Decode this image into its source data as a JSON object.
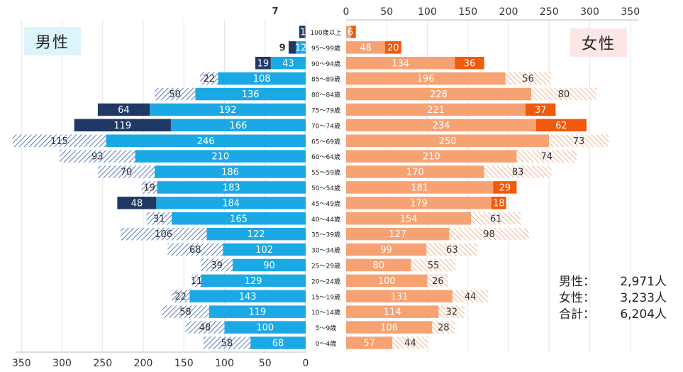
{
  "labels": {
    "male": "男性",
    "female": "女性"
  },
  "totals": [
    {
      "label": "男性：",
      "value": "2,971人"
    },
    {
      "label": "女性：",
      "value": "3,233人"
    },
    {
      "label": "合計：",
      "value": "6,204人"
    }
  ],
  "colors": {
    "male_base": "#1ba9e6",
    "male_extra": "#1f3864",
    "male_hatch": "#2e5aa8",
    "female_base": "#f7a273",
    "female_extra": "#f05a0a",
    "female_hatch": "#f4a070"
  },
  "chart_data": {
    "type": "bar",
    "orientation": "horizontal",
    "subtype": "population-pyramid",
    "xlim": [
      0,
      350
    ],
    "x_ticks": [
      "0",
      "50",
      "100",
      "150",
      "200",
      "250",
      "300",
      "350"
    ],
    "categories": [
      "100歳以上",
      "95～99歳",
      "90～94歳",
      "85～89歳",
      "80～84歳",
      "75～79歳",
      "70～74歳",
      "65～69歳",
      "60～64歳",
      "55～59歳",
      "50～54歳",
      "45～49歳",
      "40～44歳",
      "35～39歳",
      "30～34歳",
      "25～29歳",
      "20～24歳",
      "15～19歳",
      "10～14歳",
      "5～9歳",
      "0～4歳"
    ],
    "male": {
      "base": [
        1,
        12,
        43,
        108,
        136,
        192,
        166,
        246,
        210,
        186,
        183,
        184,
        165,
        122,
        102,
        90,
        129,
        143,
        119,
        100,
        68
      ],
      "extra": [
        7,
        9,
        19,
        0,
        0,
        64,
        119,
        0,
        0,
        0,
        0,
        48,
        0,
        0,
        0,
        0,
        0,
        0,
        0,
        0,
        0
      ],
      "shortfall": [
        0,
        0,
        0,
        22,
        50,
        0,
        0,
        115,
        93,
        70,
        19,
        0,
        31,
        106,
        68,
        39,
        11,
        22,
        58,
        48,
        58
      ]
    },
    "female": {
      "base": [
        6,
        48,
        134,
        196,
        228,
        221,
        234,
        250,
        210,
        170,
        181,
        179,
        154,
        127,
        99,
        80,
        100,
        131,
        114,
        106,
        57
      ],
      "extra": [
        6,
        20,
        36,
        0,
        0,
        37,
        62,
        0,
        0,
        0,
        29,
        18,
        0,
        0,
        0,
        0,
        0,
        0,
        0,
        0,
        0
      ],
      "shortfall": [
        0,
        0,
        0,
        56,
        80,
        0,
        0,
        73,
        74,
        83,
        0,
        0,
        61,
        98,
        63,
        55,
        26,
        44,
        32,
        28,
        44
      ]
    }
  }
}
